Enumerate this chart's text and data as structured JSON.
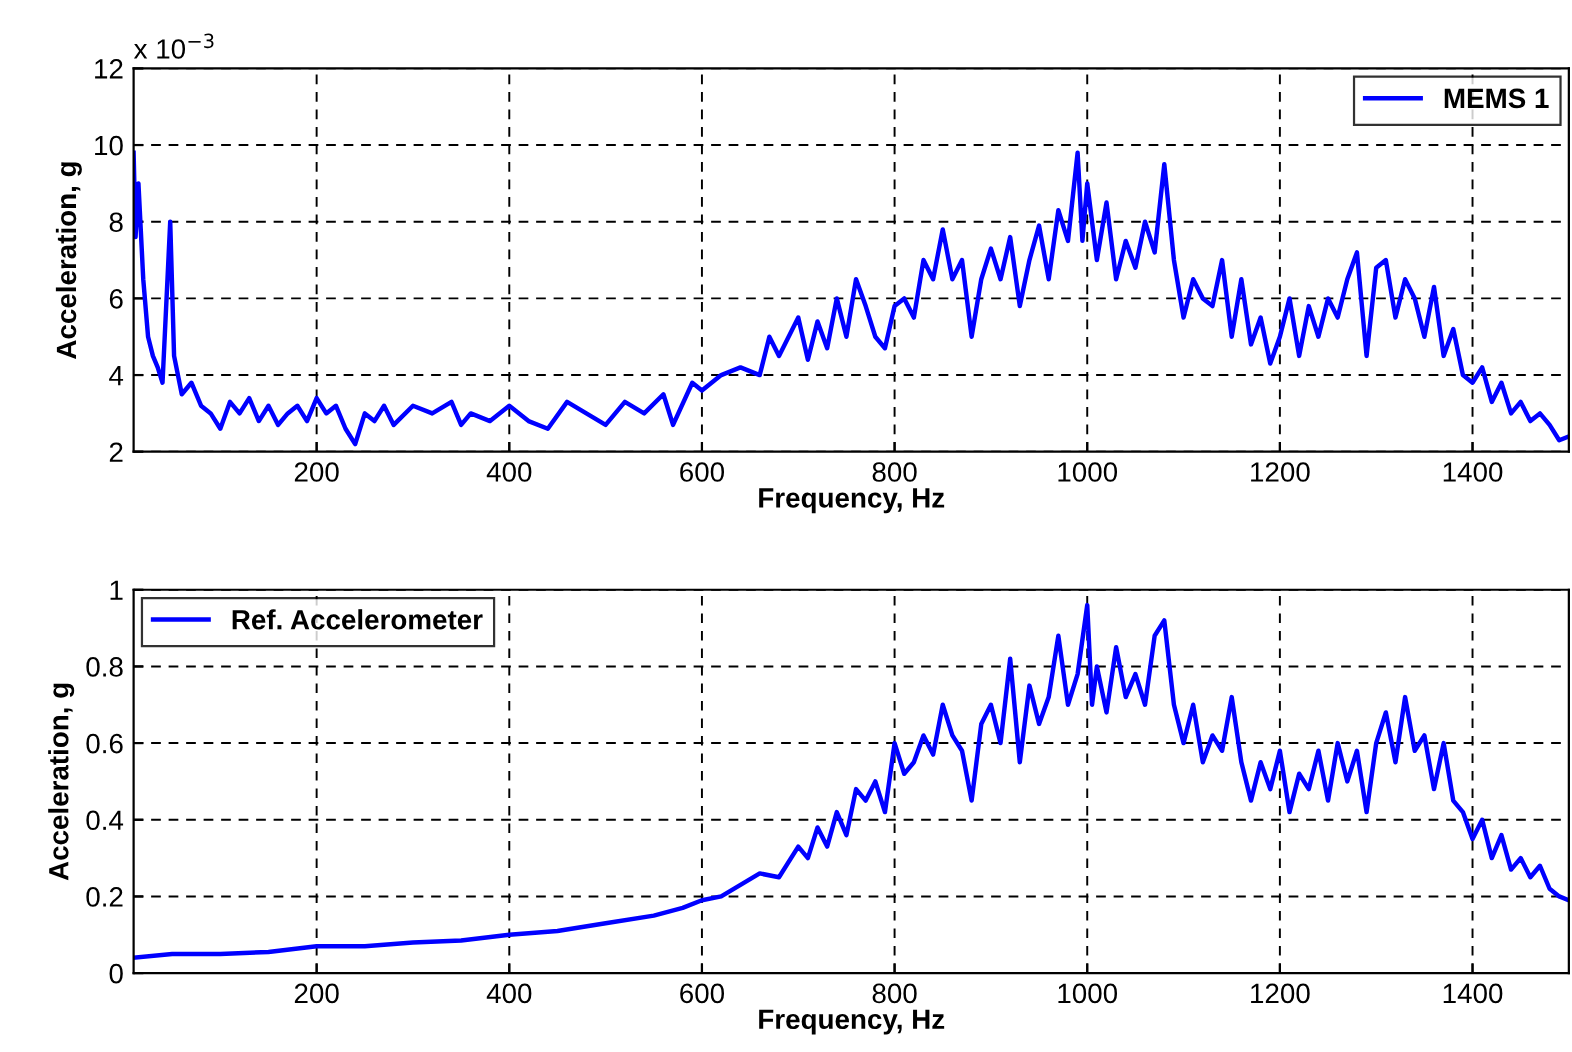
{
  "chart_data": [
    {
      "type": "line",
      "xlabel": "Frequency, Hz",
      "ylabel": "Acceleration, g",
      "annotations": [
        "x 10$^{−3}$"
      ],
      "xlim": [
        10,
        1500
      ],
      "xticks": [
        200,
        400,
        600,
        800,
        1000,
        1200,
        1400
      ],
      "ylim": [
        2,
        12
      ],
      "yticks": [
        2,
        4,
        6,
        8,
        10,
        12
      ],
      "grid": true,
      "legend": "top right",
      "line_style": "solid",
      "series": [
        {
          "name": "MEMS 1",
          "color": "#0000ff",
          "x": [
            10,
            12,
            15,
            20,
            25,
            30,
            35,
            40,
            48,
            52,
            60,
            70,
            80,
            90,
            100,
            110,
            120,
            130,
            140,
            150,
            160,
            170,
            180,
            190,
            200,
            210,
            220,
            230,
            240,
            250,
            260,
            270,
            280,
            300,
            320,
            340,
            350,
            360,
            380,
            400,
            420,
            440,
            460,
            480,
            500,
            520,
            540,
            560,
            570,
            590,
            600,
            620,
            640,
            660,
            670,
            680,
            700,
            710,
            720,
            730,
            740,
            750,
            760,
            770,
            780,
            790,
            800,
            810,
            820,
            830,
            840,
            850,
            860,
            870,
            880,
            890,
            900,
            910,
            920,
            930,
            940,
            950,
            960,
            970,
            980,
            990,
            995,
            1000,
            1010,
            1020,
            1030,
            1040,
            1050,
            1060,
            1070,
            1080,
            1090,
            1100,
            1110,
            1120,
            1130,
            1140,
            1150,
            1160,
            1170,
            1180,
            1190,
            1200,
            1210,
            1220,
            1230,
            1240,
            1250,
            1260,
            1270,
            1280,
            1290,
            1300,
            1310,
            1320,
            1330,
            1340,
            1350,
            1360,
            1370,
            1380,
            1390,
            1400,
            1410,
            1420,
            1430,
            1440,
            1450,
            1460,
            1470,
            1480,
            1490,
            1500
          ],
          "values": [
            9.8,
            7.6,
            9.0,
            6.5,
            5.0,
            4.5,
            4.2,
            3.8,
            8.0,
            4.5,
            3.5,
            3.8,
            3.2,
            3.0,
            2.6,
            3.3,
            3.0,
            3.4,
            2.8,
            3.2,
            2.7,
            3.0,
            3.2,
            2.8,
            3.4,
            3.0,
            3.2,
            2.6,
            2.2,
            3.0,
            2.8,
            3.2,
            2.7,
            3.2,
            3.0,
            3.3,
            2.7,
            3.0,
            2.8,
            3.2,
            2.8,
            2.6,
            3.3,
            3.0,
            2.7,
            3.3,
            3.0,
            3.5,
            2.7,
            3.8,
            3.6,
            4.0,
            4.2,
            4.0,
            5.0,
            4.5,
            5.5,
            4.4,
            5.4,
            4.7,
            6.0,
            5.0,
            6.5,
            5.8,
            5.0,
            4.7,
            5.8,
            6.0,
            5.5,
            7.0,
            6.5,
            7.8,
            6.5,
            7.0,
            5.0,
            6.5,
            7.3,
            6.5,
            7.6,
            5.8,
            7.0,
            7.9,
            6.5,
            8.3,
            7.5,
            9.8,
            7.5,
            9.0,
            7.0,
            8.5,
            6.5,
            7.5,
            6.8,
            8.0,
            7.2,
            9.5,
            7.0,
            5.5,
            6.5,
            6.0,
            5.8,
            7.0,
            5.0,
            6.5,
            4.8,
            5.5,
            4.3,
            5.0,
            6.0,
            4.5,
            5.8,
            5.0,
            6.0,
            5.5,
            6.5,
            7.2,
            4.5,
            6.8,
            7.0,
            5.5,
            6.5,
            6.0,
            5.0,
            6.3,
            4.5,
            5.2,
            4.0,
            3.8,
            4.2,
            3.3,
            3.8,
            3.0,
            3.3,
            2.8,
            3.0,
            2.7,
            2.3,
            2.4
          ]
        }
      ]
    },
    {
      "type": "line",
      "xlabel": "Frequency, Hz",
      "ylabel": "Acceleration, g",
      "xlim": [
        10,
        1500
      ],
      "xticks": [
        200,
        400,
        600,
        800,
        1000,
        1200,
        1400
      ],
      "ylim": [
        0,
        1
      ],
      "yticks": [
        0,
        0.2,
        0.4,
        0.6,
        0.8,
        1
      ],
      "grid": true,
      "legend": "top left",
      "line_style": "solid",
      "series": [
        {
          "name": "Ref. Accelerometer",
          "color": "#0000ff",
          "x": [
            10,
            50,
            100,
            150,
            200,
            250,
            300,
            350,
            400,
            450,
            500,
            550,
            580,
            600,
            620,
            640,
            660,
            680,
            700,
            710,
            720,
            730,
            740,
            750,
            760,
            770,
            780,
            790,
            800,
            810,
            820,
            830,
            840,
            850,
            860,
            870,
            880,
            890,
            900,
            910,
            920,
            930,
            940,
            950,
            960,
            970,
            980,
            990,
            1000,
            1005,
            1010,
            1020,
            1030,
            1040,
            1050,
            1060,
            1070,
            1080,
            1090,
            1100,
            1110,
            1120,
            1130,
            1140,
            1150,
            1160,
            1170,
            1180,
            1190,
            1200,
            1210,
            1220,
            1230,
            1240,
            1250,
            1260,
            1270,
            1280,
            1290,
            1300,
            1310,
            1320,
            1330,
            1340,
            1350,
            1360,
            1370,
            1380,
            1390,
            1400,
            1410,
            1420,
            1430,
            1440,
            1450,
            1460,
            1470,
            1480,
            1490,
            1500
          ],
          "values": [
            0.04,
            0.05,
            0.05,
            0.055,
            0.07,
            0.07,
            0.08,
            0.085,
            0.1,
            0.11,
            0.13,
            0.15,
            0.17,
            0.19,
            0.2,
            0.23,
            0.26,
            0.25,
            0.33,
            0.3,
            0.38,
            0.33,
            0.42,
            0.36,
            0.48,
            0.45,
            0.5,
            0.42,
            0.6,
            0.52,
            0.55,
            0.62,
            0.57,
            0.7,
            0.62,
            0.58,
            0.45,
            0.65,
            0.7,
            0.6,
            0.82,
            0.55,
            0.75,
            0.65,
            0.72,
            0.88,
            0.7,
            0.78,
            0.96,
            0.7,
            0.8,
            0.68,
            0.85,
            0.72,
            0.78,
            0.7,
            0.88,
            0.92,
            0.7,
            0.6,
            0.7,
            0.55,
            0.62,
            0.58,
            0.72,
            0.55,
            0.45,
            0.55,
            0.48,
            0.58,
            0.42,
            0.52,
            0.48,
            0.58,
            0.45,
            0.6,
            0.5,
            0.58,
            0.42,
            0.6,
            0.68,
            0.55,
            0.72,
            0.58,
            0.62,
            0.48,
            0.6,
            0.45,
            0.42,
            0.35,
            0.4,
            0.3,
            0.36,
            0.27,
            0.3,
            0.25,
            0.28,
            0.22,
            0.2,
            0.19
          ]
        }
      ]
    }
  ]
}
